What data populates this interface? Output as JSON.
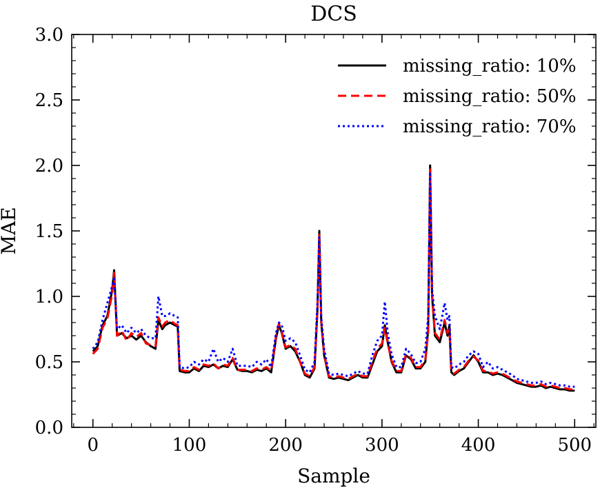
{
  "chart_data": {
    "type": "line",
    "title": "DCS",
    "xlabel": "Sample",
    "ylabel": "MAE",
    "xlim": [
      -22,
      522
    ],
    "ylim": [
      0.0,
      3.0
    ],
    "xticks": [
      0,
      100,
      200,
      300,
      400,
      500
    ],
    "xtick_labels": [
      "0",
      "100",
      "200",
      "300",
      "400",
      "500"
    ],
    "yticks": [
      0.0,
      0.5,
      1.0,
      1.5,
      2.0,
      2.5,
      3.0
    ],
    "ytick_labels": [
      "0.0",
      "0.5",
      "1.0",
      "1.5",
      "2.0",
      "2.5",
      "3.0"
    ],
    "grid": false,
    "legend_position": "top-right",
    "series": [
      {
        "name": "missing_ratio: 10%",
        "color": "#000000",
        "style": "solid",
        "x": [
          0,
          5,
          10,
          15,
          20,
          22,
          25,
          30,
          35,
          40,
          45,
          50,
          55,
          60,
          65,
          68,
          72,
          75,
          80,
          85,
          88,
          90,
          95,
          100,
          105,
          110,
          115,
          120,
          125,
          130,
          135,
          140,
          145,
          150,
          155,
          160,
          165,
          170,
          175,
          180,
          185,
          190,
          193,
          196,
          200,
          205,
          210,
          215,
          220,
          225,
          230,
          233,
          235,
          237,
          240,
          245,
          250,
          255,
          260,
          265,
          270,
          275,
          280,
          285,
          290,
          295,
          300,
          303,
          306,
          310,
          315,
          320,
          325,
          330,
          335,
          340,
          345,
          348,
          350,
          352,
          355,
          360,
          365,
          368,
          370,
          372,
          375,
          380,
          385,
          390,
          395,
          400,
          405,
          410,
          415,
          420,
          425,
          430,
          435,
          440,
          445,
          450,
          455,
          460,
          465,
          470,
          475,
          480,
          485,
          490,
          495,
          500
        ],
        "y": [
          0.58,
          0.62,
          0.78,
          0.85,
          1.05,
          1.2,
          0.7,
          0.72,
          0.68,
          0.7,
          0.67,
          0.7,
          0.65,
          0.62,
          0.6,
          0.82,
          0.75,
          0.78,
          0.8,
          0.78,
          0.77,
          0.43,
          0.42,
          0.42,
          0.45,
          0.43,
          0.47,
          0.46,
          0.48,
          0.45,
          0.47,
          0.46,
          0.52,
          0.44,
          0.43,
          0.43,
          0.42,
          0.44,
          0.43,
          0.45,
          0.42,
          0.68,
          0.78,
          0.72,
          0.6,
          0.62,
          0.58,
          0.5,
          0.4,
          0.38,
          0.45,
          0.9,
          1.5,
          0.8,
          0.55,
          0.38,
          0.37,
          0.38,
          0.37,
          0.36,
          0.38,
          0.4,
          0.38,
          0.38,
          0.48,
          0.58,
          0.62,
          0.78,
          0.65,
          0.5,
          0.42,
          0.42,
          0.55,
          0.52,
          0.45,
          0.45,
          0.5,
          0.75,
          2.0,
          1.0,
          0.7,
          0.65,
          0.8,
          0.7,
          0.78,
          0.42,
          0.4,
          0.43,
          0.45,
          0.5,
          0.55,
          0.5,
          0.42,
          0.42,
          0.4,
          0.41,
          0.4,
          0.38,
          0.36,
          0.34,
          0.33,
          0.32,
          0.31,
          0.31,
          0.32,
          0.3,
          0.31,
          0.3,
          0.29,
          0.29,
          0.28,
          0.28
        ]
      },
      {
        "name": "missing_ratio: 50%",
        "color": "#ff0000",
        "style": "dashed",
        "x": [
          0,
          5,
          10,
          15,
          20,
          22,
          25,
          30,
          35,
          40,
          45,
          50,
          55,
          60,
          65,
          68,
          72,
          75,
          80,
          85,
          88,
          90,
          95,
          100,
          105,
          110,
          115,
          120,
          125,
          130,
          135,
          140,
          145,
          150,
          155,
          160,
          165,
          170,
          175,
          180,
          185,
          190,
          193,
          196,
          200,
          205,
          210,
          215,
          220,
          225,
          230,
          233,
          235,
          237,
          240,
          245,
          250,
          255,
          260,
          265,
          270,
          275,
          280,
          285,
          290,
          295,
          300,
          303,
          306,
          310,
          315,
          320,
          325,
          330,
          335,
          340,
          345,
          348,
          350,
          352,
          355,
          360,
          365,
          368,
          370,
          372,
          375,
          380,
          385,
          390,
          395,
          400,
          405,
          410,
          415,
          420,
          425,
          430,
          435,
          440,
          445,
          450,
          455,
          460,
          465,
          470,
          475,
          480,
          485,
          490,
          495,
          500
        ],
        "y": [
          0.56,
          0.6,
          0.76,
          0.83,
          1.02,
          1.18,
          0.7,
          0.74,
          0.66,
          0.72,
          0.69,
          0.72,
          0.64,
          0.63,
          0.62,
          0.84,
          0.77,
          0.8,
          0.82,
          0.79,
          0.78,
          0.44,
          0.43,
          0.43,
          0.46,
          0.44,
          0.48,
          0.47,
          0.49,
          0.45,
          0.48,
          0.47,
          0.53,
          0.44,
          0.44,
          0.44,
          0.43,
          0.45,
          0.44,
          0.46,
          0.43,
          0.7,
          0.79,
          0.73,
          0.61,
          0.63,
          0.6,
          0.5,
          0.41,
          0.39,
          0.46,
          0.88,
          1.47,
          0.82,
          0.56,
          0.39,
          0.38,
          0.39,
          0.38,
          0.37,
          0.39,
          0.41,
          0.39,
          0.39,
          0.5,
          0.6,
          0.64,
          0.76,
          0.64,
          0.51,
          0.43,
          0.43,
          0.56,
          0.53,
          0.46,
          0.46,
          0.52,
          0.72,
          1.97,
          1.02,
          0.72,
          0.67,
          0.82,
          0.72,
          0.75,
          0.43,
          0.41,
          0.44,
          0.46,
          0.51,
          0.54,
          0.51,
          0.43,
          0.43,
          0.41,
          0.42,
          0.41,
          0.39,
          0.37,
          0.35,
          0.34,
          0.33,
          0.32,
          0.32,
          0.33,
          0.31,
          0.32,
          0.31,
          0.3,
          0.3,
          0.29,
          0.29
        ]
      },
      {
        "name": "missing_ratio: 70%",
        "color": "#0000ff",
        "style": "dotted",
        "x": [
          0,
          5,
          10,
          15,
          20,
          22,
          25,
          30,
          35,
          40,
          45,
          50,
          55,
          60,
          65,
          68,
          72,
          75,
          80,
          85,
          88,
          90,
          95,
          100,
          105,
          110,
          115,
          120,
          125,
          130,
          135,
          140,
          145,
          150,
          155,
          160,
          165,
          170,
          175,
          180,
          185,
          190,
          193,
          196,
          200,
          205,
          210,
          215,
          220,
          225,
          230,
          233,
          235,
          237,
          240,
          245,
          250,
          255,
          260,
          265,
          270,
          275,
          280,
          285,
          290,
          295,
          300,
          303,
          306,
          310,
          315,
          320,
          325,
          330,
          335,
          340,
          345,
          348,
          350,
          352,
          355,
          360,
          365,
          368,
          370,
          372,
          375,
          380,
          385,
          390,
          395,
          400,
          405,
          410,
          415,
          420,
          425,
          430,
          435,
          440,
          445,
          450,
          455,
          460,
          465,
          470,
          475,
          480,
          485,
          490,
          495,
          500
        ],
        "y": [
          0.6,
          0.65,
          0.82,
          0.95,
          1.08,
          1.15,
          0.75,
          0.78,
          0.72,
          0.76,
          0.72,
          0.75,
          0.7,
          0.68,
          0.68,
          1.0,
          0.85,
          0.85,
          0.87,
          0.85,
          0.84,
          0.46,
          0.45,
          0.46,
          0.5,
          0.48,
          0.52,
          0.5,
          0.6,
          0.5,
          0.53,
          0.5,
          0.6,
          0.47,
          0.47,
          0.47,
          0.46,
          0.5,
          0.48,
          0.52,
          0.46,
          0.72,
          0.8,
          0.78,
          0.66,
          0.68,
          0.65,
          0.55,
          0.44,
          0.42,
          0.5,
          0.95,
          1.45,
          0.84,
          0.6,
          0.41,
          0.4,
          0.41,
          0.4,
          0.39,
          0.41,
          0.43,
          0.41,
          0.41,
          0.55,
          0.66,
          0.7,
          0.96,
          0.72,
          0.56,
          0.46,
          0.46,
          0.6,
          0.56,
          0.49,
          0.5,
          0.6,
          0.85,
          1.95,
          1.05,
          0.85,
          0.75,
          0.95,
          0.82,
          0.85,
          0.46,
          0.45,
          0.48,
          0.5,
          0.55,
          0.58,
          0.56,
          0.46,
          0.5,
          0.45,
          0.46,
          0.44,
          0.42,
          0.4,
          0.37,
          0.36,
          0.35,
          0.34,
          0.34,
          0.35,
          0.33,
          0.34,
          0.33,
          0.32,
          0.32,
          0.31,
          0.31
        ]
      }
    ]
  }
}
